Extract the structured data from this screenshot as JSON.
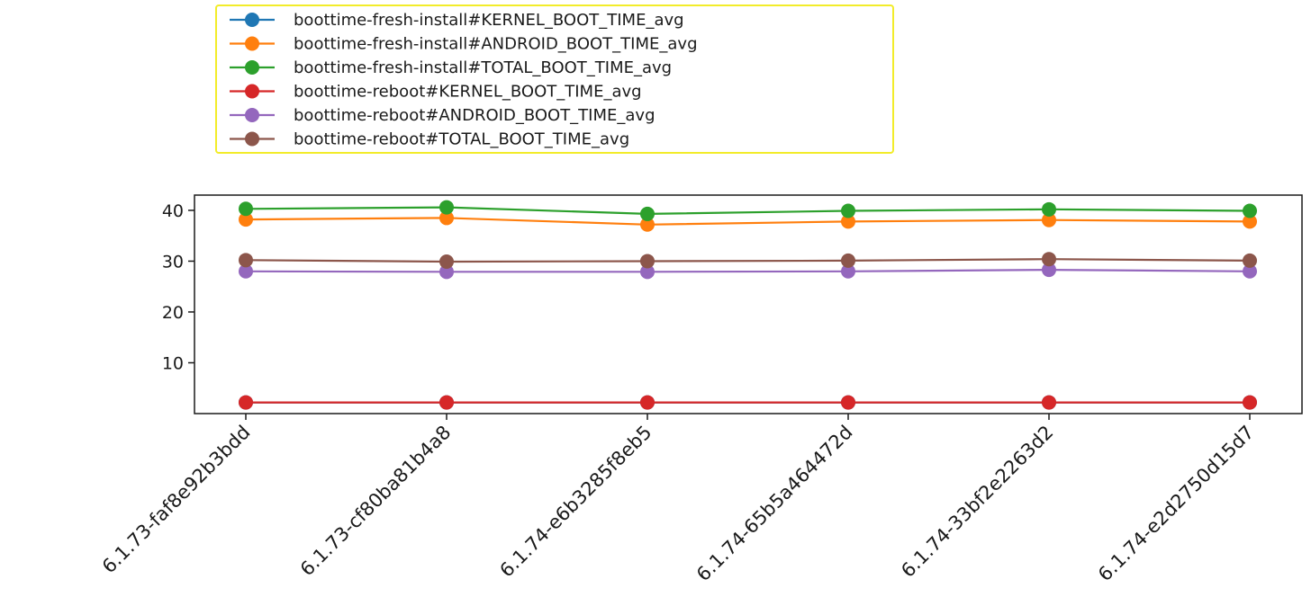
{
  "chart_data": {
    "type": "line",
    "title": "",
    "xlabel": "",
    "ylabel": "",
    "ylim": [
      0,
      43
    ],
    "yticks": [
      10,
      20,
      30,
      40
    ],
    "categories": [
      "6.1.73-faf8e92b3bdd",
      "6.1.73-cf80ba81b4a8",
      "6.1.74-e6b3285f8eb5",
      "6.1.74-65b5a464472d",
      "6.1.74-33bf2e2263d2",
      "6.1.74-e2d2750d15d7"
    ],
    "legend_position": "above-left",
    "grid": false,
    "series": [
      {
        "name": "boottime-fresh-install#KERNEL_BOOT_TIME_avg",
        "color": "#1f77b4",
        "values": [
          2.2,
          2.2,
          2.2,
          2.2,
          2.2,
          2.2
        ]
      },
      {
        "name": "boottime-fresh-install#ANDROID_BOOT_TIME_avg",
        "color": "#ff7f0e",
        "values": [
          38.2,
          38.5,
          37.2,
          37.8,
          38.1,
          37.8
        ]
      },
      {
        "name": "boottime-fresh-install#TOTAL_BOOT_TIME_avg",
        "color": "#2ca02c",
        "values": [
          40.3,
          40.6,
          39.3,
          39.9,
          40.2,
          39.9
        ]
      },
      {
        "name": "boottime-reboot#KERNEL_BOOT_TIME_avg",
        "color": "#d62728",
        "values": [
          2.2,
          2.2,
          2.2,
          2.2,
          2.2,
          2.2
        ]
      },
      {
        "name": "boottime-reboot#ANDROID_BOOT_TIME_avg",
        "color": "#9467bd",
        "values": [
          28.0,
          27.9,
          27.9,
          28.0,
          28.3,
          28.0
        ]
      },
      {
        "name": "boottime-reboot#TOTAL_BOOT_TIME_avg",
        "color": "#8c564b",
        "values": [
          30.2,
          29.9,
          30.0,
          30.1,
          30.4,
          30.1
        ]
      }
    ]
  }
}
